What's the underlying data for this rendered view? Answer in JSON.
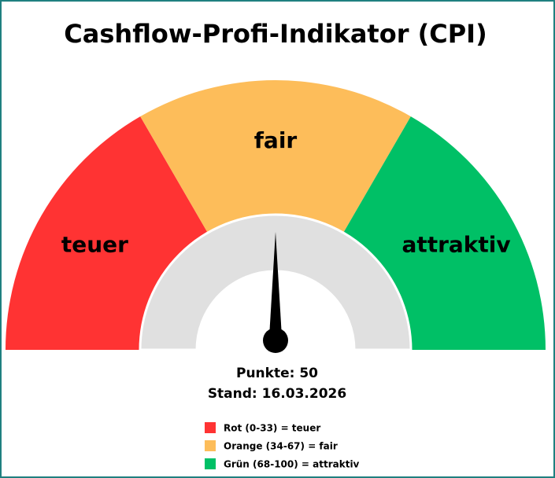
{
  "chart_data": {
    "type": "gauge",
    "title": "Cashflow-Profi-Indikator (CPI)",
    "min": 0,
    "max": 100,
    "value": 50,
    "value_label": "Punkte: 50",
    "date_label": "Stand: 16.03.2026",
    "bands": [
      {
        "name": "teuer",
        "legend": "Rot (0-33) = teuer",
        "color": "#ff3333",
        "range": [
          0,
          33.3
        ]
      },
      {
        "name": "fair",
        "legend": "Orange (34-67) = fair",
        "color": "#fdbd5a",
        "range": [
          33.3,
          66.7
        ]
      },
      {
        "name": "attraktiv",
        "legend": "Grün (68-100) = attraktiv",
        "color": "#00c066",
        "range": [
          66.7,
          100
        ]
      }
    ]
  }
}
